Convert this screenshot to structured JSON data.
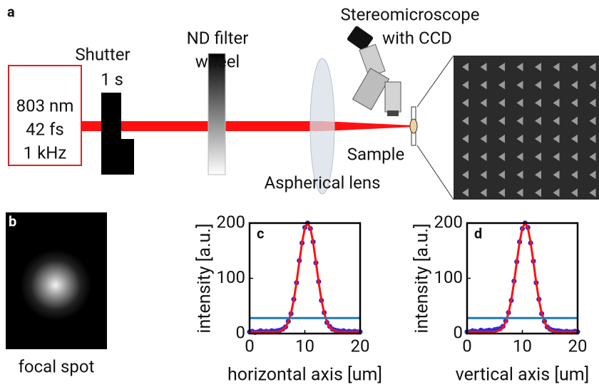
{
  "panel_a": {
    "label": "a",
    "laser": [
      "803 nm",
      "42 fs",
      "1 kHz"
    ],
    "shutter": "Shutter",
    "shutter_time": "1 s",
    "nd_filter": [
      "ND filter",
      "wheel"
    ],
    "lens": "Aspherical lens",
    "microscope": [
      "Stereomicroscope",
      "with CCD"
    ],
    "sample": "Sample"
  },
  "panel_b": {
    "label": "b",
    "caption": "focal spot"
  },
  "chart_data": [
    {
      "type": "scatter",
      "panel_label": "c",
      "xlabel": "horizontal axis [um]",
      "ylabel": "intensity [a.u.]",
      "xlim": [
        0,
        20
      ],
      "ylim": [
        0,
        200
      ],
      "xticks": [
        0,
        10,
        20
      ],
      "yticks": [
        0,
        100,
        200
      ],
      "x": [
        0,
        0.5,
        1,
        1.5,
        2,
        2.5,
        3,
        3.5,
        4,
        4.5,
        5,
        5.5,
        6,
        6.5,
        7,
        7.5,
        8,
        8.5,
        9,
        9.5,
        10,
        10.5,
        11,
        11.5,
        12,
        12.5,
        13,
        13.5,
        14,
        14.5,
        15,
        15.5,
        16,
        16.5,
        17,
        17.5,
        18,
        18.5,
        19,
        19.5,
        20
      ],
      "series": [
        {
          "style": "dots",
          "color": "#2a2ae6",
          "values": [
            3,
            4,
            2,
            3,
            5,
            3,
            4,
            3,
            5,
            4,
            5,
            6,
            8,
            12,
            22,
            36,
            62,
            92,
            132,
            164,
            192,
            200,
            190,
            166,
            128,
            94,
            60,
            38,
            20,
            13,
            8,
            6,
            5,
            4,
            5,
            3,
            4,
            3,
            4,
            3,
            3
          ]
        },
        {
          "style": "line",
          "color": "#ff1010",
          "values": [
            3,
            3,
            3,
            3,
            3,
            3,
            3,
            3,
            3,
            3,
            3,
            4.5,
            6.8,
            11.6,
            21,
            37,
            61,
            93,
            130,
            165,
            191,
            200,
            191,
            165,
            130,
            93,
            61,
            37,
            21,
            11.6,
            6.8,
            4.5,
            3.6,
            3.2,
            3.1,
            3,
            3,
            3,
            3,
            3,
            3
          ]
        },
        {
          "style": "line",
          "color": "#1f7ab8",
          "x": [
            0,
            20
          ],
          "values": [
            28,
            28
          ]
        }
      ]
    },
    {
      "type": "scatter",
      "panel_label": "d",
      "xlabel": "vertical axis [um]",
      "ylabel": "intensity [a.u.]",
      "xlim": [
        0,
        20
      ],
      "ylim": [
        0,
        200
      ],
      "xticks": [
        0,
        10,
        20
      ],
      "yticks": [
        0,
        100,
        200
      ],
      "x": [
        0,
        0.5,
        1,
        1.5,
        2,
        2.5,
        3,
        3.5,
        4,
        4.5,
        5,
        5.5,
        6,
        6.5,
        7,
        7.5,
        8,
        8.5,
        9,
        9.5,
        10,
        10.5,
        11,
        11.5,
        12,
        12.5,
        13,
        13.5,
        14,
        14.5,
        15,
        15.5,
        16,
        16.5,
        17,
        17.5,
        18,
        18.5,
        19,
        19.5,
        20
      ],
      "series": [
        {
          "style": "dots",
          "color": "#2a2ae6",
          "values": [
            3,
            3,
            5,
            4,
            3,
            6,
            4,
            5,
            6,
            5,
            7,
            8,
            9,
            13,
            23,
            38,
            60,
            95,
            130,
            166,
            190,
            200,
            192,
            164,
            131,
            92,
            62,
            36,
            22,
            12,
            8,
            6,
            5,
            5,
            4,
            3,
            4,
            3,
            3,
            4,
            3
          ]
        },
        {
          "style": "line",
          "color": "#ff1010",
          "values": [
            3,
            3,
            3,
            3,
            3,
            3,
            3,
            3,
            3,
            3,
            3,
            4.5,
            6.8,
            11.6,
            21,
            37,
            61,
            93,
            130,
            165,
            191,
            200,
            191,
            165,
            130,
            93,
            61,
            37,
            21,
            11.6,
            6.8,
            4.5,
            3.6,
            3.2,
            3.1,
            3,
            3,
            3,
            3,
            3,
            3
          ]
        },
        {
          "style": "line",
          "color": "#1f7ab8",
          "x": [
            0,
            20
          ],
          "values": [
            28,
            28
          ]
        }
      ]
    }
  ]
}
